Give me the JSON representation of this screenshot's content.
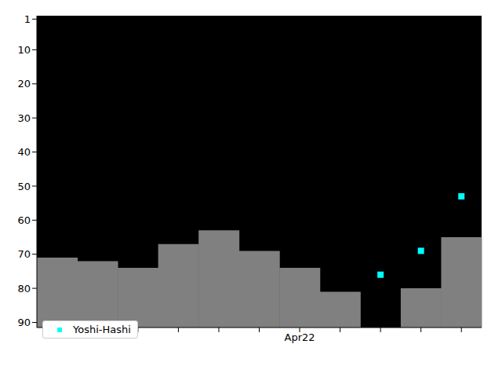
{
  "chart_data": {
    "type": "bar",
    "categories": [
      null,
      null,
      null,
      null,
      null,
      null,
      "Apr22",
      null,
      null,
      null,
      null
    ],
    "series": [
      {
        "type": "bar",
        "color": "#808080",
        "values": [
          71,
          72,
          74,
          67,
          63,
          69,
          74,
          81,
          null,
          80,
          65
        ]
      },
      {
        "name": "Yoshi-Hashi",
        "type": "scatter",
        "color": "#00ffff",
        "marker": "square",
        "values": [
          null,
          null,
          null,
          null,
          null,
          null,
          null,
          null,
          76,
          69,
          53
        ]
      }
    ],
    "ylim": [
      0,
      91.5
    ],
    "yticks": [
      1,
      10,
      20,
      30,
      40,
      50,
      60,
      70,
      80,
      90
    ],
    "grid": false,
    "legend": "lower left"
  }
}
